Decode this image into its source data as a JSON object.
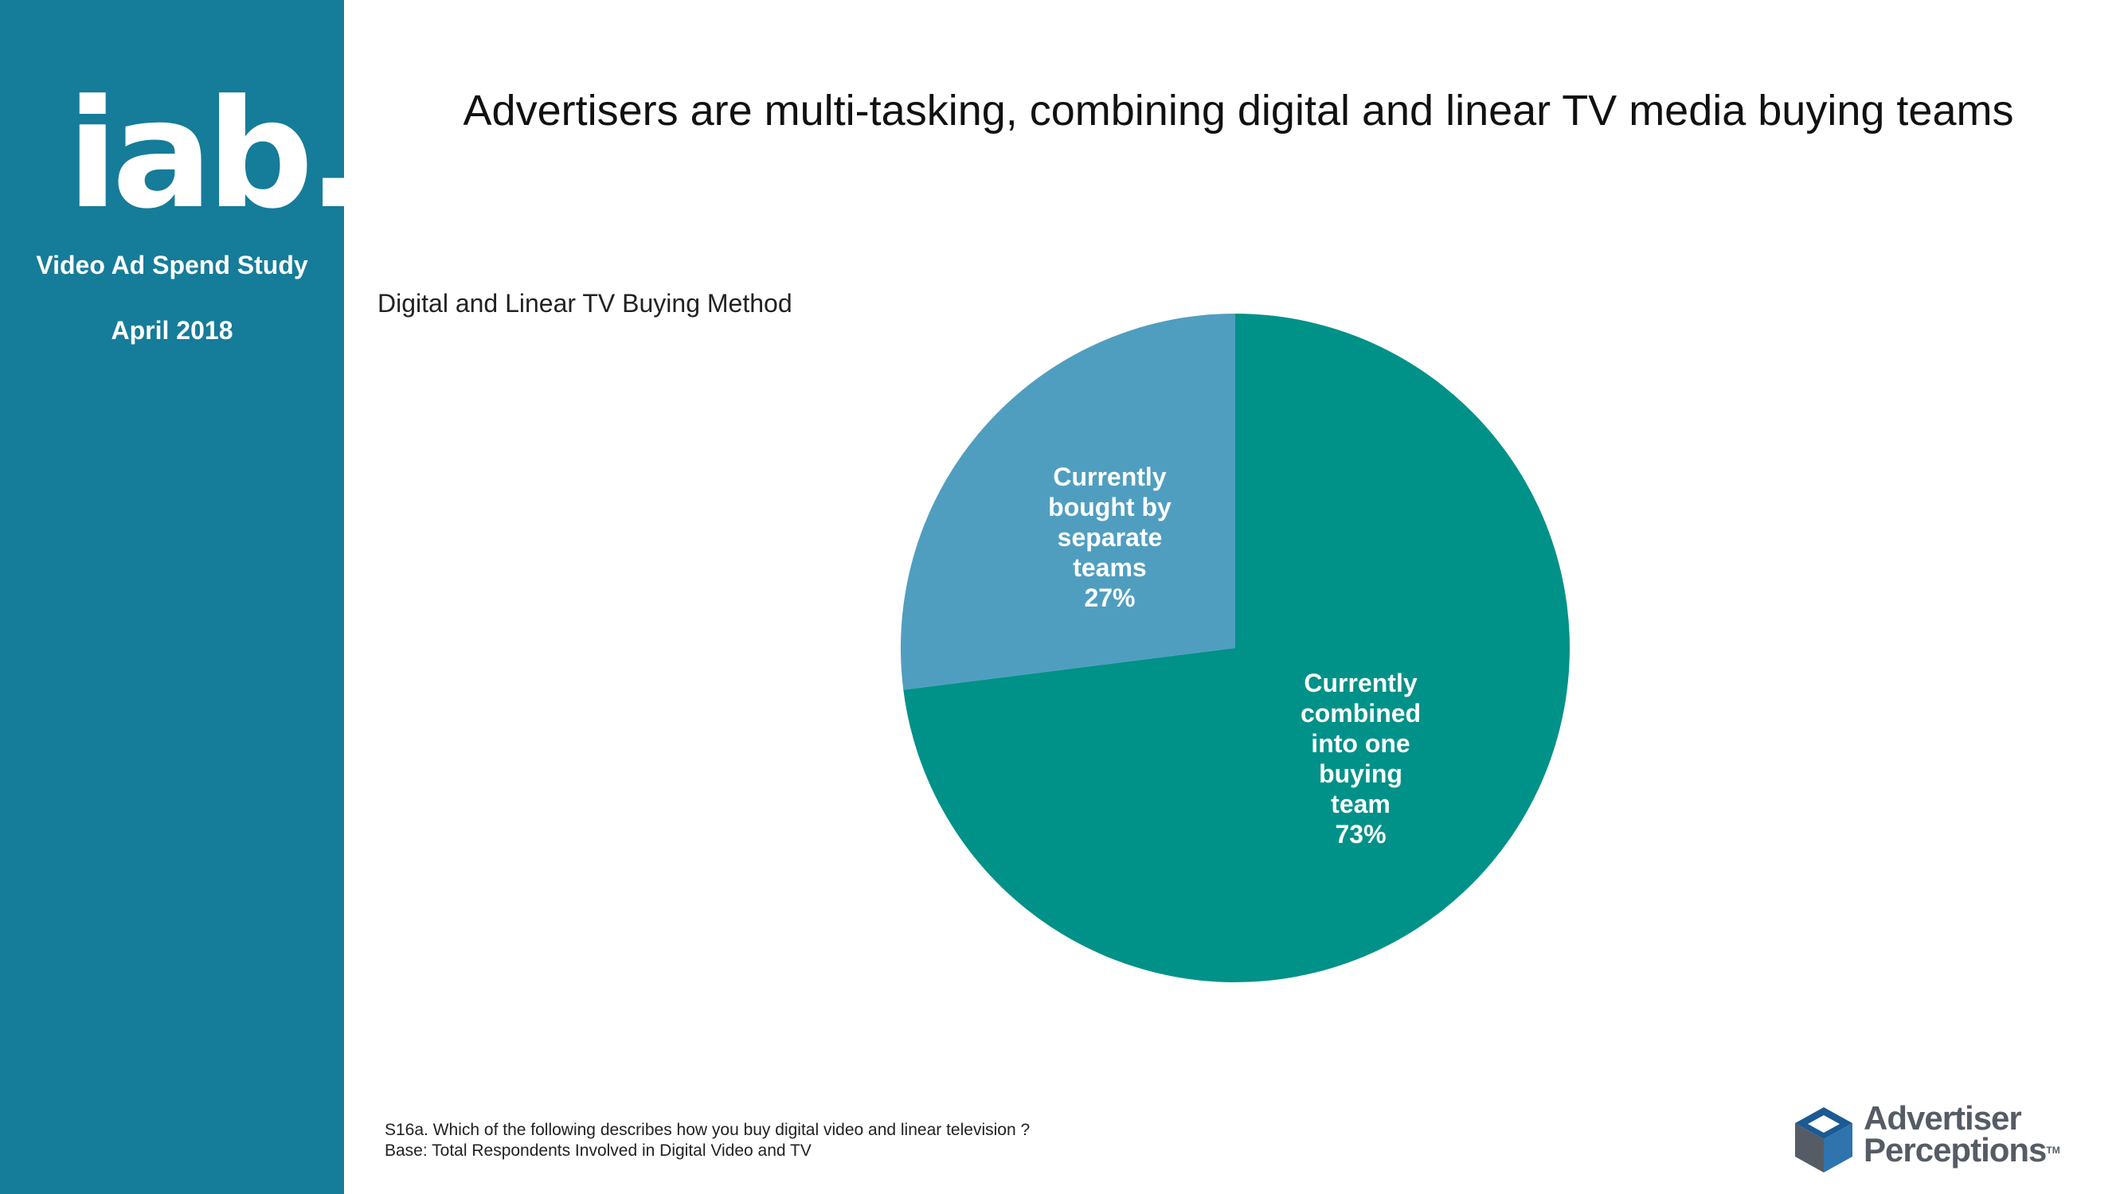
{
  "sidebar": {
    "logo_text": "iab.",
    "study_name": "Video Ad Spend Study",
    "study_date": "April 2018"
  },
  "page_title": "Advertisers are multi-tasking, combining digital and linear TV media buying teams",
  "footnote": {
    "question": "S16a. Which of the following describes how you buy digital video and linear television ?",
    "base": "Base:  Total Respondents Involved in Digital Video and TV"
  },
  "brand": {
    "line1": "Advertiser",
    "line2": "Perceptions",
    "tm": "TM"
  },
  "chart_data": {
    "type": "pie",
    "title": "Digital and Linear TV Buying Method",
    "slices": [
      {
        "label_lines": [
          "Currently",
          "combined",
          "into one",
          "buying",
          "team"
        ],
        "value": 73,
        "display": "73%",
        "color": "#009188"
      },
      {
        "label_lines": [
          "Currently",
          "bought by",
          "separate",
          "teams"
        ],
        "value": 27,
        "display": "27%",
        "color": "#4F9EC0"
      }
    ]
  }
}
